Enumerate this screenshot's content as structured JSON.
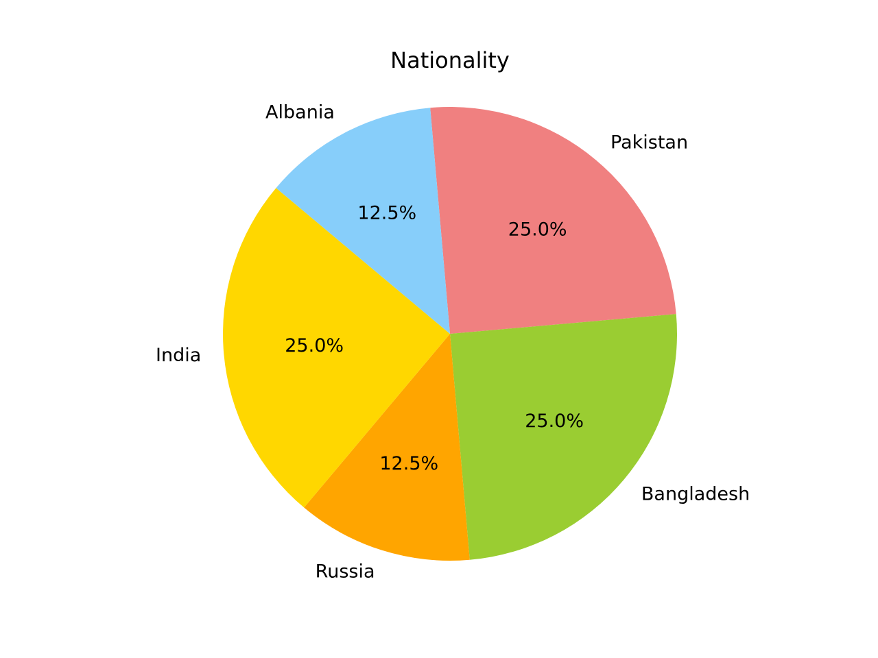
{
  "chart_data": {
    "type": "pie",
    "title": "Nationality",
    "categories": [
      "Pakistan",
      "Bangladesh",
      "Russia",
      "India",
      "Albania"
    ],
    "values": [
      25.0,
      25.0,
      12.5,
      25.0,
      12.5
    ],
    "percent_labels": [
      "25.0%",
      "25.0%",
      "12.5%",
      "25.0%",
      "12.5%"
    ],
    "colors": [
      "#f08080",
      "#9acd32",
      "#ffa500",
      "#ffd700",
      "#87cefa"
    ],
    "start_angle_deg": 95,
    "direction": "clockwise"
  }
}
